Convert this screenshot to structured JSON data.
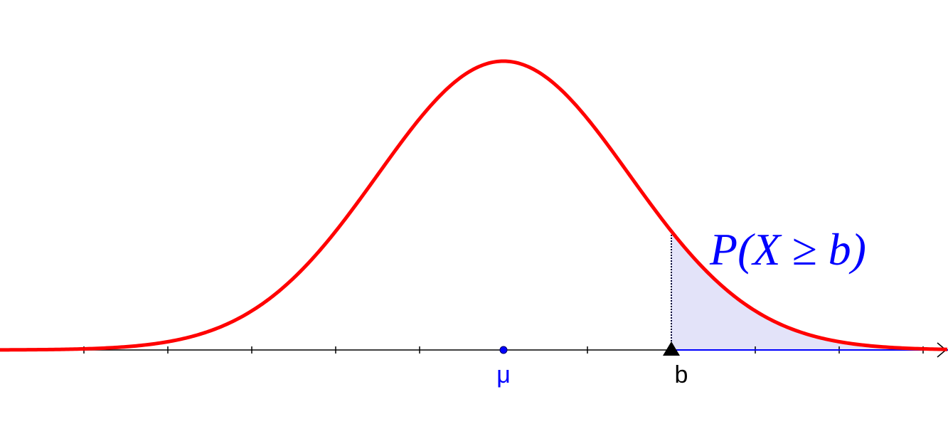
{
  "labels": {
    "mu": "μ",
    "b": "b",
    "probability": "P(X ≥ b)"
  }
}
